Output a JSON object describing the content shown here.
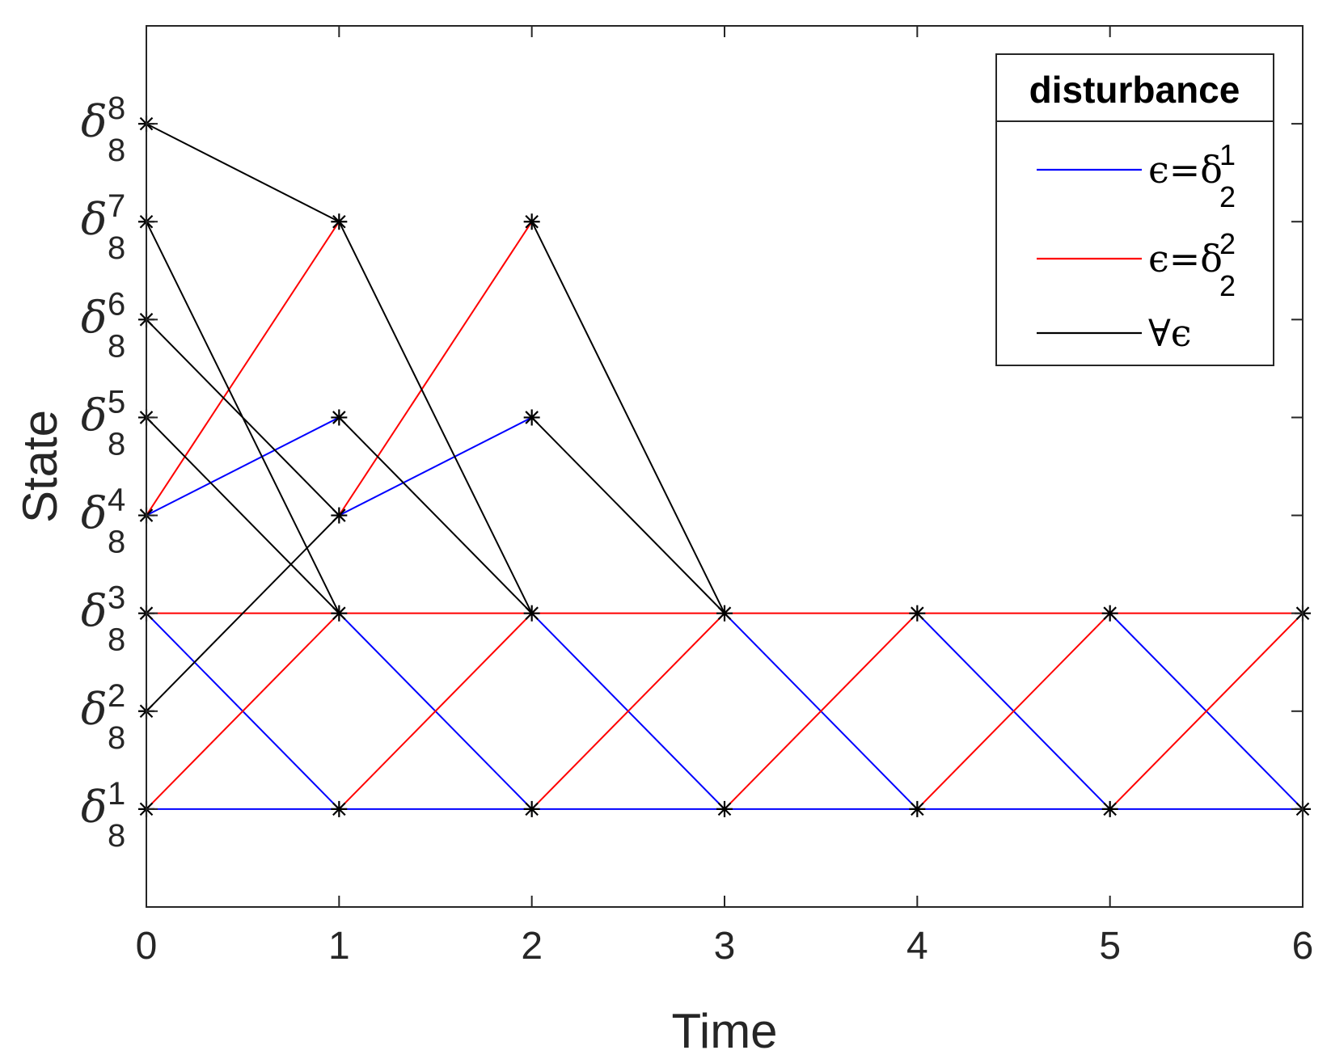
{
  "chart_data": {
    "type": "line",
    "title": "",
    "xlabel": "Time",
    "ylabel": "State",
    "xlim": [
      0,
      6
    ],
    "ylim": [
      0,
      9
    ],
    "x_ticks": [
      "0",
      "1",
      "2",
      "3",
      "4",
      "5",
      "6"
    ],
    "y_ticks": [
      {
        "value": 1,
        "base": "δ",
        "sup": "1",
        "sub": "8"
      },
      {
        "value": 2,
        "base": "δ",
        "sup": "2",
        "sub": "8"
      },
      {
        "value": 3,
        "base": "δ",
        "sup": "3",
        "sub": "8"
      },
      {
        "value": 4,
        "base": "δ",
        "sup": "4",
        "sub": "8"
      },
      {
        "value": 5,
        "base": "δ",
        "sup": "5",
        "sub": "8"
      },
      {
        "value": 6,
        "base": "δ",
        "sup": "6",
        "sub": "8"
      },
      {
        "value": 7,
        "base": "δ",
        "sup": "7",
        "sub": "8"
      },
      {
        "value": 8,
        "base": "δ",
        "sup": "8",
        "sub": "8"
      }
    ],
    "marker": "*",
    "legend": {
      "title": "disturbance",
      "location": "top-right",
      "entries": [
        {
          "series": "blue",
          "text": "ϵ=δ",
          "sup": "1",
          "sub": "2"
        },
        {
          "series": "red",
          "text": "ϵ=δ",
          "sup": "2",
          "sub": "2"
        },
        {
          "series": "black",
          "text": "∀ϵ",
          "sup": "",
          "sub": ""
        }
      ]
    },
    "series": [
      {
        "name": "ϵ=δ_2^1",
        "color": "#0000ff",
        "segments": [
          [
            [
              0,
              4
            ],
            [
              1,
              5
            ]
          ],
          [
            [
              1,
              4
            ],
            [
              2,
              5
            ]
          ],
          [
            [
              0,
              1
            ],
            [
              1,
              1
            ]
          ],
          [
            [
              1,
              1
            ],
            [
              2,
              1
            ]
          ],
          [
            [
              2,
              1
            ],
            [
              3,
              1
            ]
          ],
          [
            [
              3,
              1
            ],
            [
              4,
              1
            ]
          ],
          [
            [
              4,
              1
            ],
            [
              5,
              1
            ]
          ],
          [
            [
              5,
              1
            ],
            [
              6,
              1
            ]
          ],
          [
            [
              0,
              3
            ],
            [
              1,
              1
            ]
          ],
          [
            [
              1,
              3
            ],
            [
              2,
              1
            ]
          ],
          [
            [
              2,
              3
            ],
            [
              3,
              1
            ]
          ],
          [
            [
              3,
              3
            ],
            [
              4,
              1
            ]
          ],
          [
            [
              4,
              3
            ],
            [
              5,
              1
            ]
          ],
          [
            [
              5,
              3
            ],
            [
              6,
              1
            ]
          ]
        ]
      },
      {
        "name": "ϵ=δ_2^2",
        "color": "#ff0000",
        "segments": [
          [
            [
              0,
              4
            ],
            [
              1,
              7
            ]
          ],
          [
            [
              1,
              4
            ],
            [
              2,
              7
            ]
          ],
          [
            [
              0,
              3
            ],
            [
              1,
              3
            ]
          ],
          [
            [
              1,
              3
            ],
            [
              2,
              3
            ]
          ],
          [
            [
              2,
              3
            ],
            [
              3,
              3
            ]
          ],
          [
            [
              3,
              3
            ],
            [
              4,
              3
            ]
          ],
          [
            [
              4,
              3
            ],
            [
              5,
              3
            ]
          ],
          [
            [
              5,
              3
            ],
            [
              6,
              3
            ]
          ],
          [
            [
              0,
              1
            ],
            [
              1,
              3
            ]
          ],
          [
            [
              1,
              1
            ],
            [
              2,
              3
            ]
          ],
          [
            [
              2,
              1
            ],
            [
              3,
              3
            ]
          ],
          [
            [
              3,
              1
            ],
            [
              4,
              3
            ]
          ],
          [
            [
              4,
              1
            ],
            [
              5,
              3
            ]
          ],
          [
            [
              5,
              1
            ],
            [
              6,
              3
            ]
          ]
        ]
      },
      {
        "name": "∀ϵ",
        "color": "#000000",
        "segments": [
          [
            [
              0,
              8
            ],
            [
              1,
              7
            ]
          ],
          [
            [
              0,
              7
            ],
            [
              1,
              3
            ]
          ],
          [
            [
              0,
              6
            ],
            [
              1,
              4
            ]
          ],
          [
            [
              0,
              5
            ],
            [
              1,
              3
            ]
          ],
          [
            [
              0,
              2
            ],
            [
              1,
              4
            ]
          ],
          [
            [
              1,
              7
            ],
            [
              2,
              3
            ]
          ],
          [
            [
              1,
              5
            ],
            [
              2,
              3
            ]
          ],
          [
            [
              2,
              7
            ],
            [
              3,
              3
            ]
          ],
          [
            [
              2,
              5
            ],
            [
              3,
              3
            ]
          ]
        ]
      }
    ],
    "markers": [
      [
        0,
        8
      ],
      [
        0,
        7
      ],
      [
        0,
        6
      ],
      [
        0,
        5
      ],
      [
        0,
        4
      ],
      [
        0,
        3
      ],
      [
        0,
        2
      ],
      [
        0,
        1
      ],
      [
        1,
        7
      ],
      [
        1,
        5
      ],
      [
        1,
        4
      ],
      [
        1,
        3
      ],
      [
        1,
        1
      ],
      [
        2,
        7
      ],
      [
        2,
        5
      ],
      [
        2,
        3
      ],
      [
        2,
        1
      ],
      [
        3,
        3
      ],
      [
        3,
        1
      ],
      [
        4,
        3
      ],
      [
        4,
        1
      ],
      [
        5,
        3
      ],
      [
        5,
        1
      ],
      [
        6,
        3
      ],
      [
        6,
        1
      ]
    ]
  }
}
